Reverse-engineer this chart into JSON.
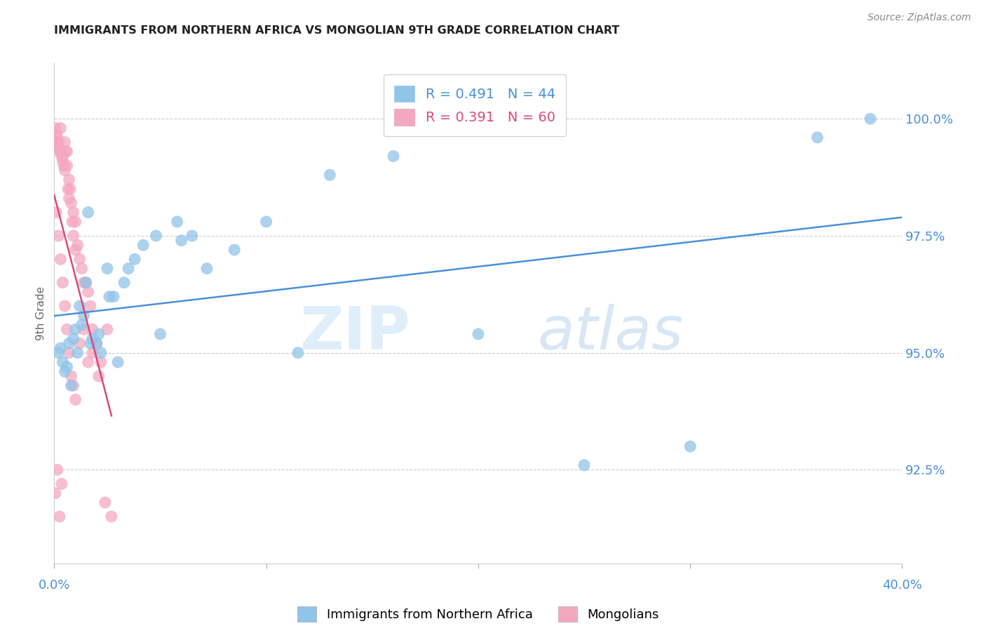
{
  "title": "IMMIGRANTS FROM NORTHERN AFRICA VS MONGOLIAN 9TH GRADE CORRELATION CHART",
  "source": "Source: ZipAtlas.com",
  "ylabel": "9th Grade",
  "y_tick_labels": [
    "92.5%",
    "95.0%",
    "97.5%",
    "100.0%"
  ],
  "y_tick_values": [
    92.5,
    95.0,
    97.5,
    100.0
  ],
  "x_min": 0.0,
  "x_max": 40.0,
  "y_min": 90.5,
  "y_max": 101.2,
  "legend_r1": "R = 0.491",
  "legend_n1": "N = 44",
  "legend_r2": "R = 0.391",
  "legend_n2": "N = 60",
  "color_blue": "#90c4e8",
  "color_pink": "#f4a8c0",
  "color_blue_line": "#4a90d9",
  "color_pink_line": "#d94a7a",
  "color_axis_labels": "#4a90d9",
  "blue_x": [
    0.2,
    0.4,
    0.5,
    0.7,
    0.8,
    1.0,
    1.1,
    1.2,
    1.4,
    1.5,
    1.6,
    1.8,
    2.0,
    2.2,
    2.5,
    2.8,
    3.0,
    3.3,
    3.8,
    4.2,
    5.0,
    5.8,
    6.5,
    7.2,
    8.5,
    10.0,
    11.5,
    13.0,
    16.0,
    20.0,
    25.0,
    30.0,
    36.0,
    38.5,
    0.3,
    0.6,
    0.9,
    1.3,
    1.7,
    2.1,
    2.6,
    3.5,
    4.8,
    6.0
  ],
  "blue_y": [
    95.0,
    94.8,
    94.6,
    95.2,
    94.3,
    95.5,
    95.0,
    96.0,
    95.8,
    96.5,
    98.0,
    95.3,
    95.2,
    95.0,
    96.8,
    96.2,
    94.8,
    96.5,
    97.0,
    97.3,
    95.4,
    97.8,
    97.5,
    96.8,
    97.2,
    97.8,
    95.0,
    98.8,
    99.2,
    95.4,
    92.6,
    93.0,
    99.6,
    100.0,
    95.1,
    94.7,
    95.3,
    95.6,
    95.2,
    95.4,
    96.2,
    96.8,
    97.5,
    97.4
  ],
  "pink_x": [
    0.05,
    0.1,
    0.15,
    0.15,
    0.2,
    0.2,
    0.25,
    0.3,
    0.3,
    0.35,
    0.4,
    0.4,
    0.45,
    0.5,
    0.5,
    0.55,
    0.6,
    0.6,
    0.65,
    0.7,
    0.7,
    0.75,
    0.8,
    0.85,
    0.9,
    0.9,
    1.0,
    1.0,
    1.1,
    1.2,
    1.3,
    1.4,
    1.5,
    1.6,
    1.7,
    1.8,
    2.0,
    2.2,
    2.5,
    0.1,
    0.2,
    0.3,
    0.4,
    0.5,
    0.6,
    0.7,
    0.8,
    0.9,
    1.0,
    1.2,
    1.4,
    1.6,
    1.8,
    2.1,
    2.4,
    2.7,
    0.05,
    0.15,
    0.25,
    0.35
  ],
  "pink_y": [
    99.8,
    99.7,
    99.6,
    99.5,
    99.5,
    99.4,
    99.3,
    99.8,
    99.3,
    99.2,
    99.2,
    99.1,
    99.0,
    98.9,
    99.5,
    99.3,
    99.0,
    99.3,
    98.5,
    98.7,
    98.3,
    98.5,
    98.2,
    97.8,
    97.5,
    98.0,
    97.2,
    97.8,
    97.3,
    97.0,
    96.8,
    96.5,
    96.5,
    96.3,
    96.0,
    95.5,
    95.2,
    94.8,
    95.5,
    98.0,
    97.5,
    97.0,
    96.5,
    96.0,
    95.5,
    95.0,
    94.5,
    94.3,
    94.0,
    95.2,
    95.5,
    94.8,
    95.0,
    94.5,
    91.8,
    91.5,
    92.0,
    92.5,
    91.5,
    92.2
  ]
}
